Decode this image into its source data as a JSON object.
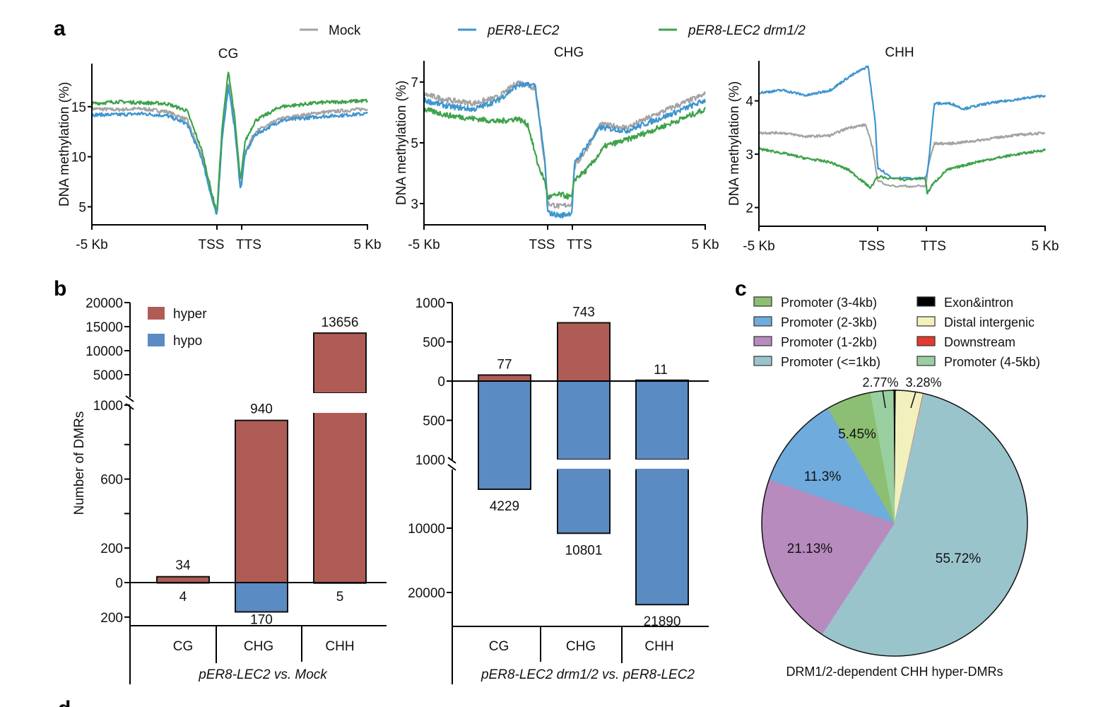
{
  "figure": {
    "panel_labels": [
      "a",
      "b",
      "c",
      "d"
    ]
  },
  "chart_data": [
    {
      "id": "a-CG",
      "type": "line",
      "title": "CG",
      "xlabel": "",
      "ylabel": "DNA methylation (%)",
      "x_tick_labels": [
        "-5 Kb",
        "TSS",
        "TTS",
        "5 Kb"
      ],
      "x_domain": [
        "-5 Kb (upstream)",
        "gene body TSS→TTS",
        "5 Kb (downstream)"
      ],
      "yticks": [
        5,
        10,
        15
      ],
      "ylim": [
        3.2,
        19.3
      ],
      "legend": {
        "placement": "top",
        "entries": [
          "Mock",
          "pER8-LEC2",
          "pER8-LEC2 drm1/2"
        ]
      },
      "series": [
        {
          "name": "Mock",
          "color": "#a3a3a3",
          "profile": [
            [
              -5,
              14.8
            ],
            [
              -4,
              14.7
            ],
            [
              -3,
              14.8
            ],
            [
              -2,
              14.5
            ],
            [
              -1.2,
              13.7
            ],
            [
              -0.6,
              10.0
            ],
            [
              -0.2,
              6.0
            ],
            [
              0,
              4.3
            ],
            [
              0.2,
              12.0
            ],
            [
              0.45,
              17.4
            ],
            [
              0.7,
              13.0
            ],
            [
              0.92,
              7.0
            ],
            [
              0.95,
              7.4
            ],
            [
              1.1,
              10.5
            ],
            [
              1.5,
              12.5
            ],
            [
              2.5,
              13.8
            ],
            [
              4,
              14.4
            ],
            [
              5.9,
              14.8
            ]
          ]
        },
        {
          "name": "pER8-LEC2",
          "color": "#3e95cf",
          "profile": [
            [
              -5,
              14.2
            ],
            [
              -4,
              14.2
            ],
            [
              -3,
              14.3
            ],
            [
              -2,
              14.1
            ],
            [
              -1.2,
              13.3
            ],
            [
              -0.6,
              9.8
            ],
            [
              -0.2,
              5.8
            ],
            [
              0,
              4.0
            ],
            [
              0.2,
              11.8
            ],
            [
              0.45,
              17.0
            ],
            [
              0.7,
              12.8
            ],
            [
              0.92,
              6.8
            ],
            [
              0.95,
              7.0
            ],
            [
              1.1,
              10.2
            ],
            [
              1.5,
              12.2
            ],
            [
              2.5,
              13.6
            ],
            [
              4,
              14.0
            ],
            [
              5.9,
              14.3
            ]
          ]
        },
        {
          "name": "pER8-LEC2 drm1/2",
          "color": "#3ea24a",
          "profile": [
            [
              -5,
              15.3
            ],
            [
              -4,
              15.5
            ],
            [
              -3,
              15.4
            ],
            [
              -2,
              15.3
            ],
            [
              -1.2,
              14.6
            ],
            [
              -0.6,
              10.6
            ],
            [
              -0.2,
              6.3
            ],
            [
              0,
              4.5
            ],
            [
              0.2,
              12.8
            ],
            [
              0.45,
              18.6
            ],
            [
              0.7,
              13.8
            ],
            [
              0.92,
              7.6
            ],
            [
              0.95,
              8.0
            ],
            [
              1.1,
              11.5
            ],
            [
              1.5,
              13.6
            ],
            [
              2.5,
              15.0
            ],
            [
              4,
              15.4
            ],
            [
              5.9,
              15.6
            ]
          ]
        }
      ]
    },
    {
      "id": "a-CHG",
      "type": "line",
      "title": "CHG",
      "xlabel": "",
      "ylabel": "DNA methylation (%)",
      "x_tick_labels": [
        "-5 Kb",
        "TSS",
        "TTS",
        "5 Kb"
      ],
      "yticks": [
        3,
        5,
        7
      ],
      "ylim": [
        2.3,
        7.7
      ],
      "series": [
        {
          "name": "Mock",
          "color": "#a3a3a3",
          "profile": [
            [
              -5,
              6.6
            ],
            [
              -4,
              6.4
            ],
            [
              -3,
              6.3
            ],
            [
              -2,
              6.5
            ],
            [
              -1.2,
              7.0
            ],
            [
              -0.5,
              6.8
            ],
            [
              -0.1,
              4.2
            ],
            [
              0,
              3.0
            ],
            [
              0.5,
              2.9
            ],
            [
              0.95,
              3.0
            ],
            [
              1.05,
              4.2
            ],
            [
              1.5,
              4.8
            ],
            [
              2.0,
              5.6
            ],
            [
              3.0,
              5.5
            ],
            [
              4.5,
              6.1
            ],
            [
              5.9,
              6.6
            ]
          ]
        },
        {
          "name": "pER8-LEC2",
          "color": "#3e95cf",
          "profile": [
            [
              -5,
              6.4
            ],
            [
              -4,
              6.2
            ],
            [
              -3,
              6.1
            ],
            [
              -2,
              6.4
            ],
            [
              -1.2,
              6.9
            ],
            [
              -0.5,
              6.9
            ],
            [
              -0.1,
              4.3
            ],
            [
              0,
              2.7
            ],
            [
              0.5,
              2.6
            ],
            [
              0.95,
              2.7
            ],
            [
              1.05,
              4.3
            ],
            [
              1.5,
              4.9
            ],
            [
              2.0,
              5.5
            ],
            [
              3.0,
              5.4
            ],
            [
              4.5,
              5.9
            ],
            [
              5.9,
              6.4
            ]
          ]
        },
        {
          "name": "pER8-LEC2 drm1/2",
          "color": "#3ea24a",
          "profile": [
            [
              -5,
              6.1
            ],
            [
              -4,
              5.9
            ],
            [
              -3,
              5.8
            ],
            [
              -2,
              5.7
            ],
            [
              -1.2,
              5.8
            ],
            [
              -0.8,
              5.6
            ],
            [
              -0.4,
              4.3
            ],
            [
              -0.1,
              3.7
            ],
            [
              0,
              3.2
            ],
            [
              0.5,
              3.3
            ],
            [
              0.95,
              3.2
            ],
            [
              1.05,
              3.8
            ],
            [
              1.5,
              4.1
            ],
            [
              2.2,
              4.9
            ],
            [
              3.0,
              5.1
            ],
            [
              4.5,
              5.6
            ],
            [
              5.9,
              6.1
            ]
          ]
        }
      ]
    },
    {
      "id": "a-CHH",
      "type": "line",
      "title": "CHH",
      "xlabel": "",
      "ylabel": "DNA methylation (%)",
      "x_tick_labels": [
        "-5 Kb",
        "TSS",
        "TTS",
        "5 Kb"
      ],
      "yticks": [
        2,
        3,
        4
      ],
      "ylim": [
        1.65,
        4.75
      ],
      "series": [
        {
          "name": "Mock",
          "color": "#a3a3a3",
          "profile": [
            [
              -5,
              3.4
            ],
            [
              -4,
              3.4
            ],
            [
              -3,
              3.33
            ],
            [
              -2,
              3.35
            ],
            [
              -1.2,
              3.5
            ],
            [
              -0.5,
              3.55
            ],
            [
              -0.2,
              3.1
            ],
            [
              0,
              2.5
            ],
            [
              0.3,
              2.4
            ],
            [
              0.95,
              2.4
            ],
            [
              1.05,
              2.8
            ],
            [
              1.3,
              3.2
            ],
            [
              2.0,
              3.2
            ],
            [
              3.0,
              3.25
            ],
            [
              4.5,
              3.35
            ],
            [
              5.9,
              3.4
            ]
          ]
        },
        {
          "name": "pER8-LEC2",
          "color": "#3e95cf",
          "profile": [
            [
              -5,
              4.15
            ],
            [
              -4,
              4.2
            ],
            [
              -3,
              4.1
            ],
            [
              -2,
              4.2
            ],
            [
              -1.2,
              4.45
            ],
            [
              -0.4,
              4.65
            ],
            [
              -0.1,
              3.6
            ],
            [
              0,
              2.75
            ],
            [
              0.3,
              2.55
            ],
            [
              0.95,
              2.55
            ],
            [
              1.05,
              2.8
            ],
            [
              1.3,
              3.95
            ],
            [
              2.0,
              3.95
            ],
            [
              2.5,
              3.85
            ],
            [
              3.5,
              3.95
            ],
            [
              5.9,
              4.1
            ]
          ]
        },
        {
          "name": "pER8-LEC2 drm1/2",
          "color": "#3ea24a",
          "profile": [
            [
              -5,
              3.1
            ],
            [
              -4,
              3.02
            ],
            [
              -3,
              2.92
            ],
            [
              -2,
              2.85
            ],
            [
              -1.2,
              2.7
            ],
            [
              -0.3,
              2.37
            ],
            [
              0,
              2.58
            ],
            [
              0.5,
              2.52
            ],
            [
              0.95,
              2.55
            ],
            [
              1.0,
              2.25
            ],
            [
              1.2,
              2.42
            ],
            [
              1.8,
              2.7
            ],
            [
              3.0,
              2.85
            ],
            [
              4.5,
              2.98
            ],
            [
              5.9,
              3.08
            ]
          ]
        }
      ]
    },
    {
      "id": "b-left",
      "type": "bar",
      "title": "",
      "xlabel": "pER8-LEC2 vs. Mock",
      "ylabel": "Number of DMRs",
      "categories": [
        "CG",
        "CHG",
        "CHH"
      ],
      "series": [
        {
          "name": "hyper",
          "color": "#b05c56",
          "values": [
            34,
            940,
            13656
          ]
        },
        {
          "name": "hypo",
          "color": "#5a8bc3",
          "values": [
            4,
            170,
            5
          ]
        }
      ],
      "y_axis_upper_ticks": [
        5000,
        10000,
        15000,
        20000
      ],
      "y_axis_lower_ticks": [
        "1000",
        "",
        "600",
        "",
        "200",
        "0"
      ],
      "y_axis_below_zero_ticks": [
        "200"
      ],
      "axis_break": "between 1000 and 5000",
      "legend": {
        "placement": "top-left",
        "entries": [
          "hyper",
          "hypo"
        ]
      }
    },
    {
      "id": "b-right",
      "type": "bar",
      "title": "",
      "xlabel": "pER8-LEC2 drm1/2 vs. pER8-LEC2",
      "ylabel": "",
      "categories": [
        "CG",
        "CHG",
        "CHH"
      ],
      "series": [
        {
          "name": "hyper",
          "color": "#b05c56",
          "values": [
            77,
            743,
            11
          ]
        },
        {
          "name": "hypo",
          "color": "#5a8bc3",
          "values": [
            4229,
            10801,
            21890
          ]
        }
      ],
      "y_axis_upper_ticks": [
        "1000",
        "500",
        "0"
      ],
      "y_axis_below_zero_ticks": [
        "500",
        "1000",
        "10000",
        "20000"
      ],
      "axis_break": "below 1000 (hypo side)"
    },
    {
      "id": "c",
      "type": "pie",
      "title": "DRM1/2-dependent CHH hyper-DMRs",
      "legend": {
        "placement": "top",
        "columns": 2
      },
      "slices": [
        {
          "label": "Promoter (<=1kb)",
          "value": 55.72,
          "value_label": "55.72%",
          "color": "#9ac4cc"
        },
        {
          "label": "Promoter (1-2kb)",
          "value": 21.13,
          "value_label": "21.13%",
          "color": "#b78bbd"
        },
        {
          "label": "Promoter (2-3kb)",
          "value": 11.3,
          "value_label": "11.3%",
          "color": "#6fabdc"
        },
        {
          "label": "Promoter (3-4kb)",
          "value": 5.45,
          "value_label": "5.45%",
          "color": "#8cbf73"
        },
        {
          "label": "Promoter (4-5kb)",
          "value": 2.77,
          "value_label": "2.77%",
          "color": "#9acfa0"
        },
        {
          "label": "Exon&intron",
          "value": 0.3,
          "value_label": "",
          "color": "#000000"
        },
        {
          "label": "Distal intergenic",
          "value": 3.28,
          "value_label": "3.28%",
          "color": "#f2f0bd"
        },
        {
          "label": "Downstream",
          "value": 0.05,
          "value_label": "",
          "color": "#e23b2e"
        }
      ],
      "legend_order": [
        "Promoter (3-4kb)",
        "Promoter (2-3kb)",
        "Promoter (1-2kb)",
        "Promoter (<=1kb)",
        "Exon&intron",
        "Distal intergenic",
        "Downstream",
        "Promoter (4-5kb)"
      ]
    }
  ]
}
